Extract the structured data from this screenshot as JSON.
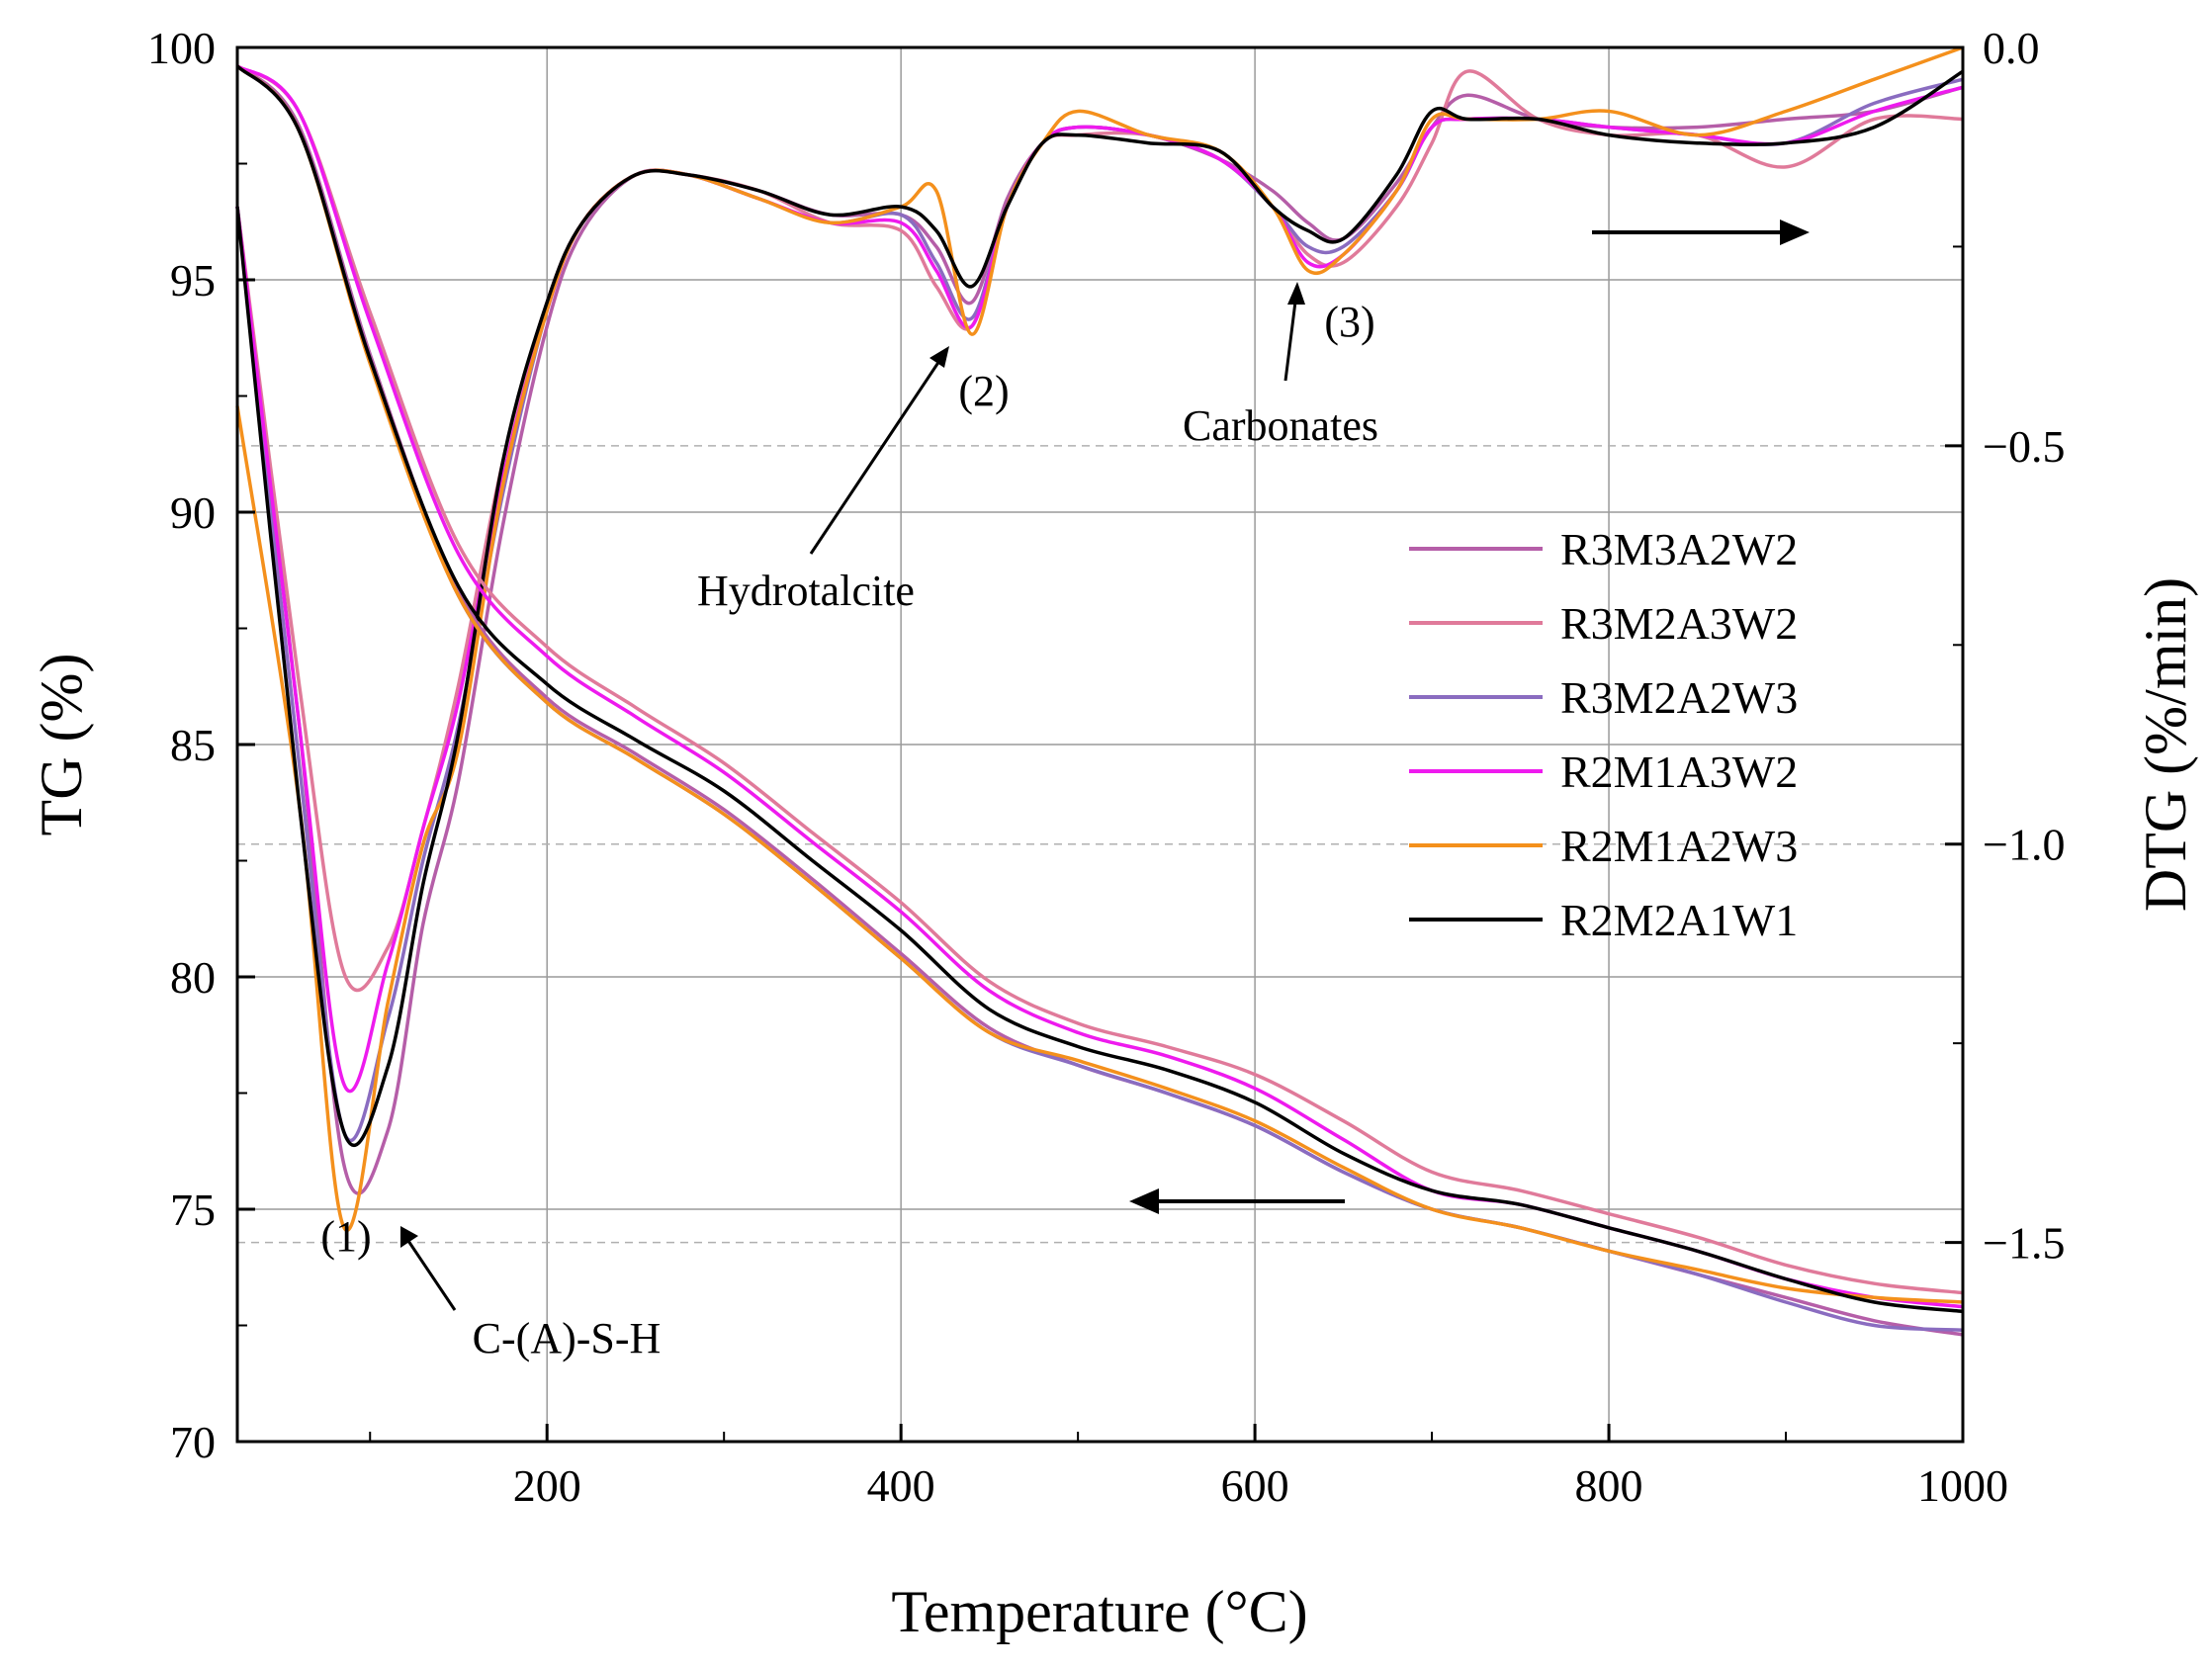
{
  "chart_data": {
    "type": "line",
    "xlabel": "Temperature (°C)",
    "ylabel_left": "TG (%)",
    "ylabel_right": "DTG (%/min)",
    "xlim": [
      25,
      1000
    ],
    "ylim_left": [
      70,
      100
    ],
    "ylim_right": [
      -1.75,
      0.0
    ],
    "grid": true,
    "legend_position": "center-right",
    "x_ticks": [
      200,
      400,
      600,
      800,
      1000
    ],
    "x_tick_labels": [
      "200",
      "400",
      "600",
      "800",
      "1000"
    ],
    "y_left_ticks": [
      70,
      75,
      80,
      85,
      90,
      95,
      100
    ],
    "y_left_tick_labels": [
      "70",
      "75",
      "80",
      "85",
      "90",
      "95",
      "100"
    ],
    "y_right_ticks": [
      0.0,
      -0.5,
      -1.0,
      -1.5
    ],
    "y_right_tick_labels": [
      "0.0",
      "−0.5",
      "−1.0",
      "−1.5"
    ],
    "legend_order": [
      "R3M3A2W2",
      "R3M2A3W2",
      "R3M2A2W3",
      "R2M1A3W2",
      "R2M1A2W3",
      "R2M2A1W1"
    ],
    "annotations": [
      {
        "label": "(1)",
        "text": "C-(A)-S-H",
        "x": 85
      },
      {
        "label": "(2)",
        "text": "Hydrotalcite",
        "x": 440
      },
      {
        "label": "(3)",
        "text": "Carbonates",
        "x": 625
      }
    ],
    "series_tg": [
      {
        "name": "R3M3A2W2",
        "color": "#b55ea8",
        "x": [
          25,
          60,
          100,
          150,
          200,
          250,
          300,
          350,
          400,
          450,
          500,
          550,
          600,
          650,
          700,
          750,
          800,
          850,
          900,
          950,
          1000
        ],
        "y": [
          99.6,
          98.3,
          93.4,
          88.3,
          86.0,
          84.8,
          83.6,
          82.1,
          80.5,
          78.9,
          78.1,
          77.5,
          76.8,
          75.8,
          75.0,
          74.6,
          74.1,
          73.6,
          73.1,
          72.6,
          72.3
        ]
      },
      {
        "name": "R3M2A3W2",
        "color": "#e07a9a",
        "x": [
          25,
          60,
          100,
          150,
          200,
          250,
          300,
          350,
          400,
          450,
          500,
          550,
          600,
          650,
          700,
          750,
          800,
          850,
          900,
          950,
          1000
        ],
        "y": [
          99.6,
          98.6,
          94.3,
          89.3,
          87.1,
          85.8,
          84.6,
          83.1,
          81.6,
          79.9,
          79.0,
          78.5,
          77.9,
          76.9,
          75.8,
          75.4,
          74.9,
          74.4,
          73.8,
          73.4,
          73.2
        ]
      },
      {
        "name": "R3M2A2W3",
        "color": "#8a6cc0",
        "x": [
          25,
          60,
          100,
          150,
          200,
          250,
          300,
          350,
          400,
          450,
          500,
          550,
          600,
          650,
          700,
          750,
          800,
          850,
          900,
          950,
          1000
        ],
        "y": [
          99.6,
          98.2,
          93.3,
          88.2,
          85.9,
          84.7,
          83.5,
          82.0,
          80.4,
          78.8,
          78.1,
          77.5,
          76.8,
          75.8,
          75.0,
          74.6,
          74.1,
          73.6,
          73.0,
          72.5,
          72.4
        ]
      },
      {
        "name": "R2M1A3W2",
        "color": "#ee1aee",
        "x": [
          25,
          60,
          100,
          150,
          200,
          250,
          300,
          350,
          400,
          450,
          500,
          550,
          600,
          650,
          700,
          750,
          800,
          850,
          900,
          950,
          1000
        ],
        "y": [
          99.6,
          98.6,
          94.1,
          89.1,
          86.9,
          85.6,
          84.4,
          82.9,
          81.4,
          79.7,
          78.8,
          78.3,
          77.6,
          76.5,
          75.4,
          75.1,
          74.6,
          74.1,
          73.5,
          73.1,
          72.9
        ]
      },
      {
        "name": "R2M1A2W3",
        "color": "#f4901c",
        "x": [
          25,
          60,
          100,
          150,
          200,
          250,
          300,
          350,
          400,
          450,
          500,
          550,
          600,
          650,
          700,
          750,
          800,
          850,
          900,
          950,
          1000
        ],
        "y": [
          99.6,
          98.2,
          93.2,
          88.2,
          85.9,
          84.7,
          83.5,
          82.0,
          80.4,
          78.8,
          78.2,
          77.6,
          76.9,
          75.9,
          75.0,
          74.6,
          74.1,
          73.7,
          73.3,
          73.1,
          73.0
        ]
      },
      {
        "name": "R2M2A1W1",
        "color": "#000000",
        "x": [
          25,
          60,
          100,
          150,
          200,
          250,
          300,
          350,
          400,
          450,
          500,
          550,
          600,
          650,
          700,
          750,
          800,
          850,
          900,
          950,
          1000
        ],
        "y": [
          99.6,
          98.2,
          93.3,
          88.4,
          86.3,
          85.1,
          84.0,
          82.5,
          81.0,
          79.3,
          78.5,
          78.0,
          77.3,
          76.2,
          75.4,
          75.1,
          74.6,
          74.1,
          73.5,
          73.0,
          72.8
        ]
      }
    ],
    "series_dtg": [
      {
        "name": "R3M3A2W2",
        "color": "#b55ea8",
        "x": [
          25,
          60,
          85,
          110,
          130,
          150,
          175,
          200,
          220,
          250,
          280,
          320,
          360,
          400,
          420,
          440,
          460,
          480,
          500,
          540,
          580,
          610,
          630,
          650,
          680,
          700,
          720,
          760,
          800,
          850,
          900,
          950,
          1000
        ],
        "y": [
          -0.2,
          -0.85,
          -1.4,
          -1.36,
          -1.1,
          -0.92,
          -0.6,
          -0.35,
          -0.23,
          -0.16,
          -0.16,
          -0.18,
          -0.21,
          -0.21,
          -0.25,
          -0.32,
          -0.19,
          -0.12,
          -0.1,
          -0.11,
          -0.14,
          -0.18,
          -0.22,
          -0.24,
          -0.17,
          -0.1,
          -0.06,
          -0.09,
          -0.1,
          -0.1,
          -0.09,
          -0.08,
          -0.05
        ]
      },
      {
        "name": "R3M2A3W2",
        "color": "#e07a9a",
        "x": [
          25,
          60,
          85,
          110,
          130,
          150,
          175,
          200,
          220,
          250,
          280,
          320,
          360,
          400,
          420,
          440,
          460,
          480,
          500,
          540,
          580,
          610,
          630,
          650,
          680,
          700,
          720,
          760,
          800,
          850,
          900,
          950,
          1000
        ],
        "y": [
          -0.2,
          -0.8,
          -1.16,
          -1.13,
          -0.98,
          -0.8,
          -0.52,
          -0.32,
          -0.22,
          -0.16,
          -0.16,
          -0.18,
          -0.22,
          -0.23,
          -0.3,
          -0.35,
          -0.2,
          -0.12,
          -0.11,
          -0.11,
          -0.14,
          -0.2,
          -0.26,
          -0.27,
          -0.2,
          -0.12,
          -0.03,
          -0.09,
          -0.11,
          -0.11,
          -0.15,
          -0.09,
          -0.09
        ]
      },
      {
        "name": "R3M2A2W3",
        "color": "#8a6cc0",
        "x": [
          25,
          60,
          85,
          110,
          130,
          150,
          175,
          200,
          220,
          250,
          280,
          320,
          360,
          400,
          420,
          440,
          460,
          480,
          500,
          540,
          580,
          610,
          630,
          650,
          680,
          700,
          720,
          760,
          800,
          850,
          900,
          950,
          1000
        ],
        "y": [
          -0.2,
          -0.9,
          -1.36,
          -1.22,
          -1.02,
          -0.85,
          -0.56,
          -0.33,
          -0.22,
          -0.16,
          -0.16,
          -0.19,
          -0.22,
          -0.21,
          -0.27,
          -0.34,
          -0.2,
          -0.12,
          -0.1,
          -0.11,
          -0.14,
          -0.2,
          -0.25,
          -0.25,
          -0.18,
          -0.1,
          -0.09,
          -0.09,
          -0.1,
          -0.11,
          -0.12,
          -0.07,
          -0.04
        ]
      },
      {
        "name": "R2M1A3W2",
        "color": "#ee1aee",
        "x": [
          25,
          60,
          85,
          110,
          130,
          150,
          175,
          200,
          220,
          250,
          280,
          320,
          360,
          400,
          420,
          440,
          460,
          480,
          500,
          540,
          580,
          610,
          630,
          650,
          680,
          700,
          720,
          760,
          800,
          850,
          900,
          950,
          1000
        ],
        "y": [
          -0.2,
          -0.85,
          -1.3,
          -1.15,
          -0.98,
          -0.82,
          -0.54,
          -0.33,
          -0.22,
          -0.16,
          -0.16,
          -0.19,
          -0.22,
          -0.22,
          -0.28,
          -0.35,
          -0.2,
          -0.12,
          -0.1,
          -0.11,
          -0.14,
          -0.2,
          -0.27,
          -0.26,
          -0.18,
          -0.1,
          -0.09,
          -0.09,
          -0.1,
          -0.11,
          -0.12,
          -0.08,
          -0.05
        ]
      },
      {
        "name": "R2M1A2W3",
        "color": "#f4901c",
        "x": [
          25,
          60,
          85,
          110,
          130,
          150,
          175,
          200,
          220,
          250,
          280,
          320,
          360,
          400,
          420,
          440,
          460,
          480,
          500,
          540,
          580,
          610,
          630,
          650,
          680,
          700,
          720,
          760,
          800,
          850,
          900,
          950,
          1000
        ],
        "y": [
          -0.45,
          -0.95,
          -1.48,
          -1.2,
          -1.0,
          -0.88,
          -0.55,
          -0.33,
          -0.22,
          -0.16,
          -0.16,
          -0.19,
          -0.22,
          -0.2,
          -0.18,
          -0.36,
          -0.2,
          -0.12,
          -0.08,
          -0.11,
          -0.13,
          -0.2,
          -0.28,
          -0.26,
          -0.18,
          -0.09,
          -0.09,
          -0.09,
          -0.08,
          -0.11,
          -0.08,
          -0.04,
          0.0
        ]
      },
      {
        "name": "R2M2A1W1",
        "color": "#000000",
        "x": [
          25,
          60,
          85,
          110,
          130,
          150,
          175,
          200,
          220,
          250,
          280,
          320,
          360,
          400,
          420,
          440,
          460,
          480,
          500,
          540,
          580,
          610,
          630,
          650,
          680,
          700,
          720,
          760,
          800,
          850,
          900,
          950,
          1000
        ],
        "y": [
          -0.2,
          -0.95,
          -1.36,
          -1.28,
          -1.05,
          -0.86,
          -0.52,
          -0.32,
          -0.22,
          -0.16,
          -0.16,
          -0.18,
          -0.21,
          -0.2,
          -0.23,
          -0.3,
          -0.2,
          -0.12,
          -0.11,
          -0.12,
          -0.13,
          -0.2,
          -0.23,
          -0.24,
          -0.16,
          -0.08,
          -0.09,
          -0.09,
          -0.11,
          -0.12,
          -0.12,
          -0.1,
          -0.03
        ]
      }
    ]
  }
}
